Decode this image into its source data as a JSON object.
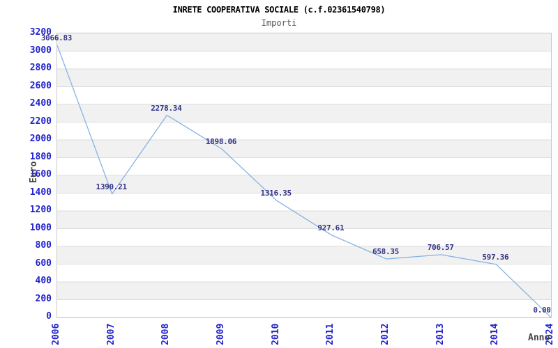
{
  "chart_data": {
    "type": "line",
    "title": "INRETE COOPERATIVA SOCIALE (c.f.02361540798)",
    "subtitle": "Importi",
    "xlabel": "Anno",
    "ylabel": "Euro",
    "categories": [
      "2006",
      "2007",
      "2008",
      "2009",
      "2010",
      "2011",
      "2012",
      "2013",
      "2014",
      "2024"
    ],
    "values": [
      3066.83,
      1390.21,
      2278.34,
      1898.06,
      1316.35,
      927.61,
      658.35,
      706.57,
      597.36,
      0.0
    ],
    "point_labels": [
      "3066.83",
      "1390.21",
      "2278.34",
      "1898.06",
      "1316.35",
      "927.61",
      "658.35",
      "706.57",
      "597.36",
      "0.00"
    ],
    "ylim": [
      0,
      3200
    ],
    "ytick_step": 200,
    "ytick_labels": [
      "0",
      "200",
      "400",
      "600",
      "800",
      "1000",
      "1200",
      "1400",
      "1600",
      "1800",
      "2000",
      "2200",
      "2400",
      "2600",
      "2800",
      "3000",
      "3200"
    ],
    "grid": "horizontal, alternating shaded bands",
    "legend": "none",
    "colors": {
      "line": "#87b3e3",
      "tick_labels": "#2222cc",
      "point_labels": "#333388",
      "band": "#f1f1f1",
      "gridline": "#dcdcdc",
      "plot_border": "#c9c9c9",
      "title": "#000000",
      "subtitle": "#555555",
      "axis_titles": "#444444"
    }
  }
}
